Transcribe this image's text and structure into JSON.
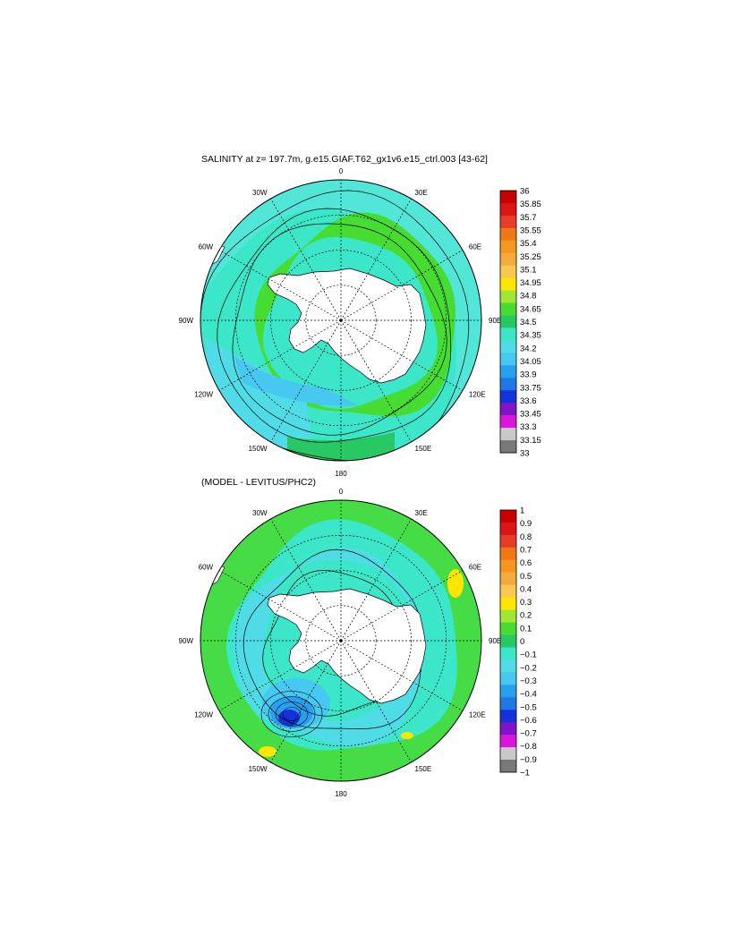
{
  "panels": [
    {
      "title": "SALINITY at z= 197.7m, g.e15.GIAF.T62_gx1v6.e15_ctrl.003 [43-62]",
      "background_fill": "#52e6d8",
      "longitude_labels": [
        "0",
        "30E",
        "60E",
        "90E",
        "120E",
        "150E",
        "180",
        "150W",
        "120W",
        "90W",
        "60W",
        "30W"
      ],
      "colorbar": {
        "labels": [
          "36",
          "35.85",
          "35.7",
          "35.55",
          "35.4",
          "35.25",
          "35.1",
          "34.95",
          "34.8",
          "34.65",
          "34.5",
          "34.35",
          "34.2",
          "34.05",
          "33.9",
          "33.75",
          "33.6",
          "33.45",
          "33.3",
          "33.15",
          "33"
        ],
        "colors": [
          "#c80000",
          "#dc1414",
          "#e63c28",
          "#f07814",
          "#f5961e",
          "#f5aa3c",
          "#fac850",
          "#ffe600",
          "#a0e632",
          "#46dc32",
          "#28c864",
          "#3ce6c8",
          "#50dce6",
          "#46c8f0",
          "#28a0f0",
          "#1e78e6",
          "#1432dc",
          "#8214c8",
          "#dc14dc",
          "#c8c8c8",
          "#787878"
        ]
      }
    },
    {
      "title": "(MODEL - LEVITUS/PHC2)",
      "background_fill": "#46dc46",
      "longitude_labels": [
        "0",
        "30E",
        "60E",
        "90E",
        "120E",
        "150E",
        "180",
        "150W",
        "120W",
        "90W",
        "60W",
        "30W"
      ],
      "colorbar": {
        "labels": [
          "1",
          "0.9",
          "0.8",
          "0.7",
          "0.6",
          "0.5",
          "0.4",
          "0.3",
          "0.2",
          "0.1",
          "0",
          "−0.1",
          "−0.2",
          "−0.3",
          "−0.4",
          "−0.5",
          "−0.6",
          "−0.7",
          "−0.8",
          "−0.9",
          "−1"
        ],
        "colors": [
          "#c80000",
          "#dc1414",
          "#e63c28",
          "#f07814",
          "#f5961e",
          "#f5aa3c",
          "#fac850",
          "#ffe600",
          "#a0e632",
          "#46dc32",
          "#28c864",
          "#3ce6c8",
          "#50dce6",
          "#46c8f0",
          "#28a0f0",
          "#1e78e6",
          "#1432dc",
          "#8214c8",
          "#dc14dc",
          "#c8c8c8",
          "#787878"
        ]
      }
    }
  ]
}
